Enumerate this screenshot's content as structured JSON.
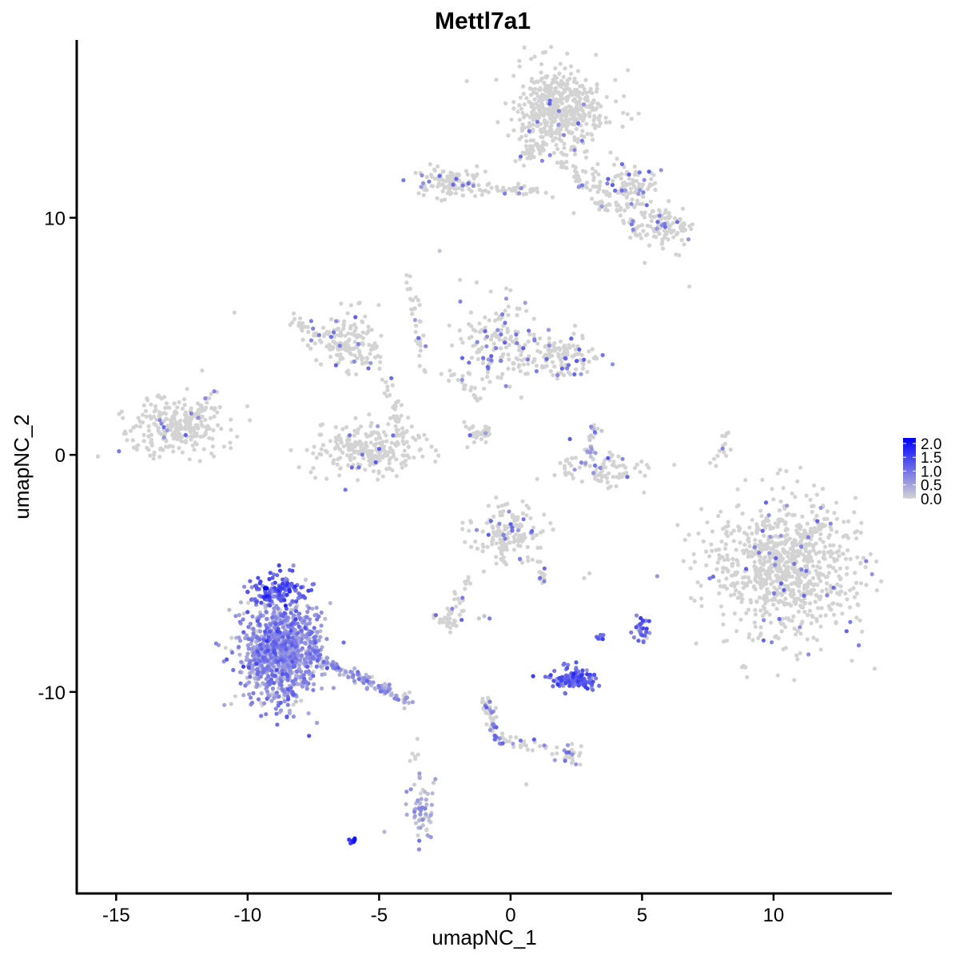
{
  "chart_data": {
    "type": "scatter",
    "title": "Mettl7a1",
    "xlabel": "umapNC_1",
    "ylabel": "umapNC_2",
    "xlim": [
      -16.5,
      14.5
    ],
    "ylim": [
      -18.5,
      17.5
    ],
    "x_ticks": [
      -15,
      -10,
      -5,
      0,
      5,
      10
    ],
    "x_tick_labels": [
      "-15",
      "-10",
      "-5",
      "0",
      "5",
      "10"
    ],
    "y_ticks": [
      -10,
      0,
      10
    ],
    "y_tick_labels": [
      "-10",
      "0",
      "10"
    ],
    "grid": false,
    "legend_position": "right",
    "color_scale": {
      "low_color": "#d3d3d3",
      "high_color": "#0000ff",
      "min": 0,
      "max": 2.2,
      "breaks": [
        0.0,
        0.5,
        1.0,
        1.5,
        2.0
      ],
      "break_labels": [
        "0.0",
        "0.5",
        "1.0",
        "1.5",
        "2.0"
      ]
    },
    "clusters": [
      {
        "cx": 1.9,
        "cy": 14.5,
        "sx": 0.85,
        "sy": 0.9,
        "n": 520,
        "expr": 0.02
      },
      {
        "cx": 4.6,
        "cy": 11.3,
        "sx": 0.55,
        "sy": 0.45,
        "n": 90,
        "expr": 0.06
      },
      {
        "cx": 5.9,
        "cy": 9.6,
        "sx": 0.55,
        "sy": 0.45,
        "n": 110,
        "expr": 0.06
      },
      {
        "cx": -2.2,
        "cy": 11.5,
        "sx": 0.6,
        "sy": 0.35,
        "n": 110,
        "expr": 0.06
      },
      {
        "cx": -12.8,
        "cy": 1.2,
        "sx": 0.9,
        "sy": 0.6,
        "n": 260,
        "expr": 0.03
      },
      {
        "cx": -6.2,
        "cy": 4.8,
        "sx": 0.7,
        "sy": 0.6,
        "n": 130,
        "expr": 0.04
      },
      {
        "cx": -5.4,
        "cy": 0.2,
        "sx": 1.0,
        "sy": 0.55,
        "n": 260,
        "expr": 0.04
      },
      {
        "cx": -0.5,
        "cy": 4.8,
        "sx": 0.7,
        "sy": 0.9,
        "n": 150,
        "expr": 0.12
      },
      {
        "cx": 1.8,
        "cy": 4.2,
        "sx": 0.8,
        "sy": 0.45,
        "n": 140,
        "expr": 0.14
      },
      {
        "cx": 3.3,
        "cy": -0.6,
        "sx": 0.9,
        "sy": 0.35,
        "n": 90,
        "expr": 0.08
      },
      {
        "cx": 10.5,
        "cy": -4.7,
        "sx": 1.4,
        "sy": 1.4,
        "n": 900,
        "expr": 0.02
      },
      {
        "cx": -0.1,
        "cy": -3.4,
        "sx": 0.65,
        "sy": 0.55,
        "n": 160,
        "expr": 0.07
      },
      {
        "cx": -2.4,
        "cy": -6.9,
        "sx": 0.3,
        "sy": 0.2,
        "n": 30,
        "expr": 0.05
      },
      {
        "cx": -8.8,
        "cy": -8.3,
        "sx": 0.75,
        "sy": 1.1,
        "n": 950,
        "expr": 0.6
      },
      {
        "cx": -8.9,
        "cy": -5.7,
        "sx": 0.5,
        "sy": 0.35,
        "n": 120,
        "expr": 1.2
      },
      {
        "cx": 2.4,
        "cy": -9.5,
        "sx": 0.45,
        "sy": 0.18,
        "n": 120,
        "expr": 1.05
      },
      {
        "cx": 5.0,
        "cy": -7.4,
        "sx": 0.15,
        "sy": 0.3,
        "n": 30,
        "expr": 1.0
      },
      {
        "cx": 3.4,
        "cy": -7.7,
        "sx": 0.08,
        "sy": 0.1,
        "n": 8,
        "expr": 1.1
      },
      {
        "cx": -3.4,
        "cy": -14.9,
        "sx": 0.25,
        "sy": 0.7,
        "n": 60,
        "expr": 0.3
      },
      {
        "cx": -6.0,
        "cy": -16.3,
        "sx": 0.08,
        "sy": 0.06,
        "n": 8,
        "expr": 1.8
      },
      {
        "cx": 2.3,
        "cy": -12.6,
        "sx": 0.3,
        "sy": 0.25,
        "n": 25,
        "expr": 0.2
      }
    ],
    "trails": [
      {
        "x1": 1.2,
        "y1": 13.0,
        "x2": 0.4,
        "y2": 12.6,
        "n": 30,
        "expr": 0.04
      },
      {
        "x1": 1.8,
        "y1": 12.6,
        "x2": 3.6,
        "y2": 10.3,
        "n": 40,
        "expr": 0.04
      },
      {
        "x1": 3.0,
        "y1": 12.0,
        "x2": 5.0,
        "y2": 9.2,
        "n": 50,
        "expr": 0.06
      },
      {
        "x1": -1.4,
        "y1": 11.2,
        "x2": 1.5,
        "y2": 11.2,
        "n": 40,
        "expr": 0.04
      },
      {
        "x1": -8.5,
        "y1": 5.8,
        "x2": -4.9,
        "y2": 3.6,
        "n": 60,
        "expr": 0.05
      },
      {
        "x1": -3.9,
        "y1": 7.6,
        "x2": -3.2,
        "y2": 3.4,
        "n": 35,
        "expr": 0.05
      },
      {
        "x1": -4.8,
        "y1": 3.5,
        "x2": -4.2,
        "y2": 0.8,
        "n": 30,
        "expr": 0.05
      },
      {
        "x1": -1.2,
        "y1": 2.2,
        "x2": -2.4,
        "y2": 3.6,
        "n": 20,
        "expr": 0.05
      },
      {
        "x1": -1.9,
        "y1": 1.3,
        "x2": -1.2,
        "y2": 0.8,
        "n": 12,
        "expr": 0.03
      },
      {
        "x1": -0.8,
        "y1": 1.0,
        "x2": -1.3,
        "y2": 0.6,
        "n": 20,
        "expr": 0.03
      },
      {
        "x1": 3.2,
        "y1": 1.2,
        "x2": 3.0,
        "y2": -0.1,
        "n": 25,
        "expr": 0.3
      },
      {
        "x1": -11.2,
        "y1": 2.7,
        "x2": -12.2,
        "y2": 1.5,
        "n": 20,
        "expr": 0.03
      },
      {
        "x1": 8.3,
        "y1": 1.0,
        "x2": 7.7,
        "y2": -0.4,
        "n": 15,
        "expr": 0.06
      },
      {
        "x1": -7.7,
        "y1": -8.4,
        "x2": -3.8,
        "y2": -10.4,
        "n": 150,
        "expr": 0.4
      },
      {
        "x1": -7.8,
        "y1": -6.8,
        "x2": -7.3,
        "y2": -9.2,
        "n": 30,
        "expr": 0.25
      },
      {
        "x1": -1.0,
        "y1": -10.2,
        "x2": -0.4,
        "y2": -12.2,
        "n": 55,
        "expr": 0.2
      },
      {
        "x1": -0.3,
        "y1": -12.0,
        "x2": 2.2,
        "y2": -12.7,
        "n": 25,
        "expr": 0.12
      },
      {
        "x1": -1.7,
        "y1": -5.3,
        "x2": -2.4,
        "y2": -6.8,
        "n": 20,
        "expr": 0.05
      },
      {
        "x1": 1.1,
        "y1": -4.6,
        "x2": 1.3,
        "y2": -5.5,
        "n": 15,
        "expr": 0.1
      },
      {
        "x1": 2.6,
        "y1": -9.1,
        "x2": 2.0,
        "y2": -8.9,
        "n": 10,
        "expr": 0.8
      },
      {
        "x1": -3.7,
        "y1": -11.9,
        "x2": -3.6,
        "y2": -13.0,
        "n": 6,
        "expr": 0.05
      }
    ],
    "singletons": [
      {
        "x": -10.5,
        "y": 6.0,
        "expr": 0
      },
      {
        "x": 6.8,
        "y": 7.1,
        "expr": 0
      },
      {
        "x": 5.1,
        "y": 8.1,
        "expr": 0
      },
      {
        "x": 2.4,
        "y": 10.2,
        "expr": 0
      },
      {
        "x": -2.7,
        "y": 8.6,
        "expr": 0.15
      },
      {
        "x": -3.4,
        "y": 11.3,
        "expr": 0.6
      },
      {
        "x": -4.8,
        "y": -15.9,
        "expr": 0.3
      },
      {
        "x": 0.6,
        "y": -13.9,
        "expr": 0
      },
      {
        "x": 3.0,
        "y": -5.0,
        "expr": 0
      },
      {
        "x": 2.8,
        "y": -5.2,
        "expr": 0
      },
      {
        "x": -0.8,
        "y": -6.9,
        "expr": 0.9
      },
      {
        "x": -1.0,
        "y": -6.8,
        "expr": 0.2
      },
      {
        "x": -1.2,
        "y": -6.9,
        "expr": 0.1
      }
    ]
  }
}
